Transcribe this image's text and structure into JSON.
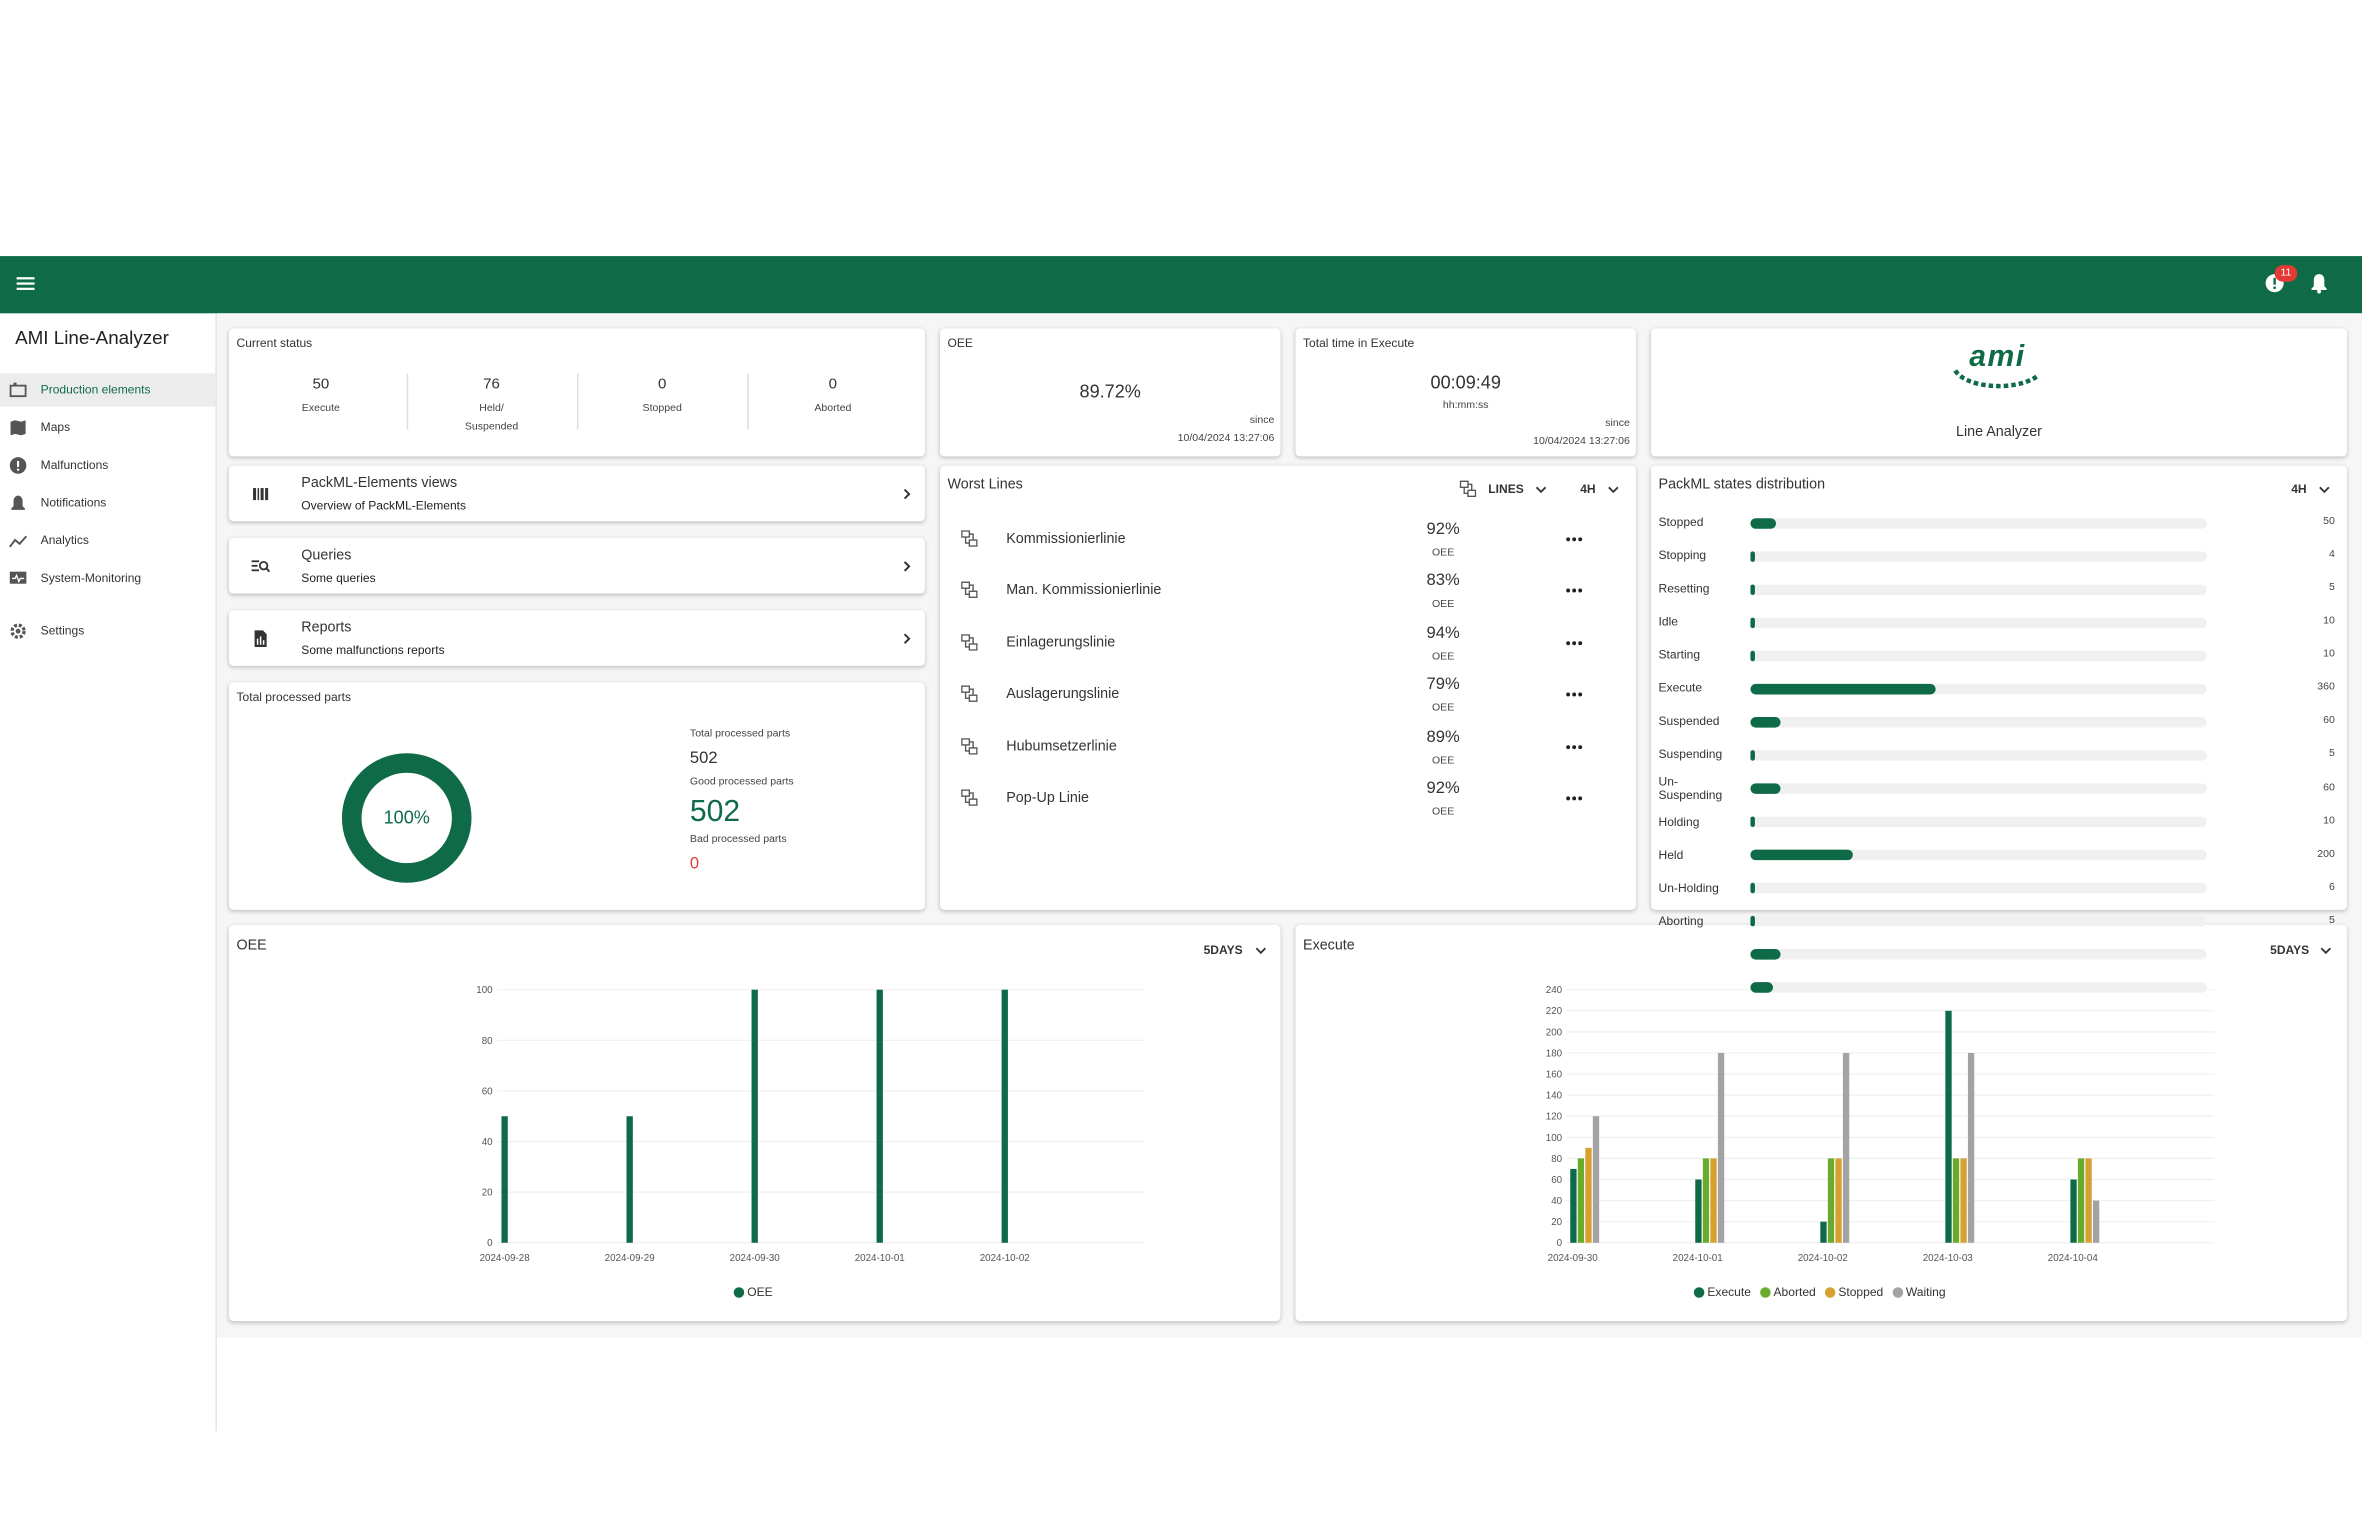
{
  "header": {
    "alerts_badge": "11"
  },
  "sidebar": {
    "title": "AMI Line-Analyzer",
    "items": [
      {
        "label": "Production elements",
        "selected": true
      },
      {
        "label": "Maps"
      },
      {
        "label": "Malfunctions"
      },
      {
        "label": "Notifications"
      },
      {
        "label": "Analytics"
      },
      {
        "label": "System-Monitoring"
      },
      {
        "label": "Settings"
      }
    ]
  },
  "current_status": {
    "title": "Current status",
    "items": [
      {
        "value": 50,
        "label": "Execute"
      },
      {
        "value": 76,
        "label": "Held/\nSuspended"
      },
      {
        "value": 0,
        "label": "Stopped"
      },
      {
        "value": 0,
        "label": "Aborted"
      }
    ]
  },
  "oee_card": {
    "title": "OEE",
    "value": "89.72%",
    "since_label": "since",
    "since": "10/04/2024 13:27:06"
  },
  "execute_time_card": {
    "title": "Total time in Execute",
    "value": "00:09:49",
    "unit": "hh:mm:ss",
    "since_label": "since",
    "since": "10/04/2024 13:27:06"
  },
  "logo_card": {
    "logo": "ami",
    "title": "Line Analyzer"
  },
  "nav_cards": [
    {
      "title": "PackML-Elements views",
      "subtitle": "Overview of PackML-Elements"
    },
    {
      "title": "Queries",
      "subtitle": "Some queries"
    },
    {
      "title": "Reports",
      "subtitle": "Some malfunctions reports"
    }
  ],
  "total_processed_parts": {
    "title": "Total processed parts",
    "percent": "100%",
    "total_label": "Total processed parts",
    "total": 502,
    "good_label": "Good processed parts",
    "good": 502,
    "bad_label": "Bad processed parts",
    "bad": 0
  },
  "worst_lines": {
    "title": "Worst Lines",
    "filter": "LINES",
    "range": "4H",
    "metric_label": "OEE",
    "rows": [
      {
        "name": "Kommissionierlinie",
        "oee": "92%"
      },
      {
        "name": "Man. Kommissionierlinie",
        "oee": "83%"
      },
      {
        "name": "Einlagerungslinie",
        "oee": "94%"
      },
      {
        "name": "Auslagerungslinie",
        "oee": "79%"
      },
      {
        "name": "Hubumsetzerlinie",
        "oee": "89%"
      },
      {
        "name": "Pop-Up Linie",
        "oee": "92%"
      }
    ]
  },
  "packml_states": {
    "title": "PackML states distribution",
    "range": "4H",
    "color": "#0f6b47",
    "states": [
      {
        "name": "Stopped",
        "value": 50
      },
      {
        "name": "Stopping",
        "value": 4
      },
      {
        "name": "Resetting",
        "value": 5
      },
      {
        "name": "Idle",
        "value": 10
      },
      {
        "name": "Starting",
        "value": 10
      },
      {
        "name": "Execute",
        "value": 360
      },
      {
        "name": "Suspended",
        "value": 60
      },
      {
        "name": "Suspending",
        "value": 5
      },
      {
        "name": "Un-\nSuspending",
        "value": 60
      },
      {
        "name": "Holding",
        "value": 10
      },
      {
        "name": "Held",
        "value": 200
      },
      {
        "name": "Un-Holding",
        "value": 6
      },
      {
        "name": "Aborting",
        "value": 5
      },
      {
        "name": null,
        "value": 60
      },
      {
        "name": null,
        "value": 45
      }
    ]
  },
  "chart_data": [
    {
      "type": "bar",
      "title": "OEE",
      "range_selector": "5DAYS",
      "categories": [
        "2024-09-28",
        "2024-09-29",
        "2024-09-30",
        "2024-10-01",
        "2024-10-02"
      ],
      "series": [
        {
          "name": "OEE",
          "color": "#0f6b47",
          "values": [
            50,
            50,
            100,
            100,
            100
          ]
        }
      ],
      "ylim": [
        0,
        100
      ],
      "yticks": [
        0,
        20,
        40,
        60,
        80,
        100
      ],
      "grid": true
    },
    {
      "type": "bar",
      "title": "Execute",
      "range_selector": "5DAYS",
      "categories": [
        "2024-09-30",
        "2024-10-01",
        "2024-10-02",
        "2024-10-03",
        "2024-10-04"
      ],
      "series": [
        {
          "name": "Execute",
          "color": "#0f6b47",
          "values": [
            70,
            60,
            20,
            220,
            60
          ]
        },
        {
          "name": "Aborted",
          "color": "#6aab2e",
          "values": [
            80,
            80,
            80,
            80,
            80
          ]
        },
        {
          "name": "Stopped",
          "color": "#d6a131",
          "values": [
            90,
            80,
            80,
            80,
            80
          ]
        },
        {
          "name": "Waiting",
          "color": "#a3a3a3",
          "values": [
            120,
            180,
            180,
            180,
            40
          ]
        }
      ],
      "ylim": [
        0,
        240
      ],
      "yticks": [
        0,
        20,
        40,
        60,
        80,
        100,
        120,
        140,
        160,
        180,
        200,
        220,
        240
      ],
      "grid": true
    }
  ]
}
